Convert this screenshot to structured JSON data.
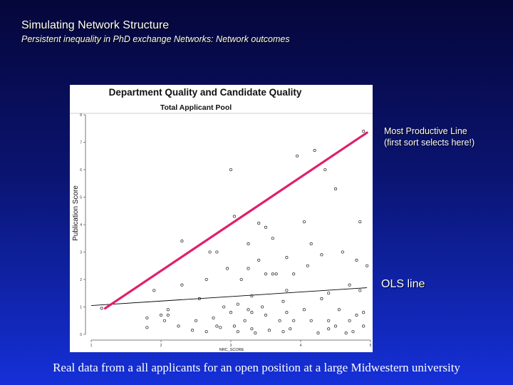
{
  "slide": {
    "title": "Simulating Network Structure",
    "subtitle": "Persistent inequality in PhD exchange Networks: Network outcomes",
    "callout_productive_line1": "Most Productive Line",
    "callout_productive_line2": "(first sort selects here!)",
    "callout_ols": "OLS line",
    "footer": "Real data from a all applicants for an open position at a large Midwestern university"
  },
  "colors": {
    "productive_line": "#e0206a",
    "ols_line": "#000000",
    "point_stroke": "#222222",
    "background_top": "#05063a",
    "background_bottom": "#1530d8"
  },
  "chart_data": {
    "type": "scatter",
    "title": "Department Quality and Candidate Quality",
    "subtitle": "Total Applicant Pool",
    "xlabel": "NRC_SCORE",
    "ylabel": "Publication Score",
    "xlim": [
      1,
      5
    ],
    "ylim": [
      0,
      8
    ],
    "xticks": [
      1,
      2,
      3,
      4,
      5
    ],
    "yticks": [
      0,
      1,
      2,
      3,
      4,
      5,
      6,
      7,
      8
    ],
    "grid": false,
    "series": [
      {
        "points": [
          [
            1.15,
            0.95
          ],
          [
            1.8,
            0.6
          ],
          [
            1.8,
            0.25
          ],
          [
            1.9,
            1.6
          ],
          [
            2.0,
            0.7
          ],
          [
            2.05,
            0.5
          ],
          [
            2.1,
            0.9
          ],
          [
            2.1,
            0.7
          ],
          [
            2.25,
            0.3
          ],
          [
            2.3,
            1.8
          ],
          [
            2.3,
            3.4
          ],
          [
            2.45,
            0.15
          ],
          [
            2.5,
            0.5
          ],
          [
            2.55,
            1.3
          ],
          [
            2.65,
            2.0
          ],
          [
            2.65,
            0.1
          ],
          [
            2.7,
            3.0
          ],
          [
            2.75,
            0.6
          ],
          [
            2.8,
            3.0
          ],
          [
            2.8,
            0.3
          ],
          [
            2.85,
            0.25
          ],
          [
            2.9,
            1.0
          ],
          [
            2.95,
            2.4
          ],
          [
            3.0,
            6.0
          ],
          [
            3.0,
            0.8
          ],
          [
            3.05,
            4.3
          ],
          [
            3.05,
            0.3
          ],
          [
            3.1,
            0.1
          ],
          [
            3.1,
            1.1
          ],
          [
            3.15,
            2.0
          ],
          [
            3.2,
            0.5
          ],
          [
            3.25,
            3.3
          ],
          [
            3.25,
            2.4
          ],
          [
            3.25,
            0.9
          ],
          [
            3.3,
            0.2
          ],
          [
            3.3,
            0.8
          ],
          [
            3.3,
            1.4
          ],
          [
            3.35,
            0.05
          ],
          [
            3.4,
            2.7
          ],
          [
            3.4,
            4.05
          ],
          [
            3.45,
            1.0
          ],
          [
            3.5,
            2.2
          ],
          [
            3.5,
            3.9
          ],
          [
            3.5,
            0.7
          ],
          [
            3.55,
            0.15
          ],
          [
            3.6,
            2.2
          ],
          [
            3.6,
            3.5
          ],
          [
            3.65,
            2.2
          ],
          [
            3.7,
            0.5
          ],
          [
            3.75,
            0.1
          ],
          [
            3.75,
            1.2
          ],
          [
            3.8,
            1.6
          ],
          [
            3.8,
            2.8
          ],
          [
            3.8,
            0.8
          ],
          [
            3.85,
            0.2
          ],
          [
            3.9,
            0.5
          ],
          [
            3.9,
            2.2
          ],
          [
            3.95,
            6.5
          ],
          [
            4.05,
            0.9
          ],
          [
            4.05,
            4.1
          ],
          [
            4.1,
            2.5
          ],
          [
            4.15,
            0.5
          ],
          [
            4.15,
            3.3
          ],
          [
            4.2,
            6.7
          ],
          [
            4.25,
            0.05
          ],
          [
            4.3,
            1.3
          ],
          [
            4.3,
            2.9
          ],
          [
            4.35,
            6.0
          ],
          [
            4.4,
            0.5
          ],
          [
            4.4,
            0.2
          ],
          [
            4.4,
            1.5
          ],
          [
            4.5,
            5.3
          ],
          [
            4.5,
            0.3
          ],
          [
            4.55,
            0.9
          ],
          [
            4.6,
            3.0
          ],
          [
            4.65,
            0.05
          ],
          [
            4.7,
            1.8
          ],
          [
            4.7,
            0.5
          ],
          [
            4.75,
            0.1
          ],
          [
            4.8,
            0.7
          ],
          [
            4.8,
            2.7
          ],
          [
            4.85,
            4.1
          ],
          [
            4.85,
            1.6
          ],
          [
            4.9,
            7.4
          ],
          [
            4.9,
            0.8
          ],
          [
            4.9,
            0.3
          ],
          [
            4.95,
            2.5
          ]
        ]
      }
    ],
    "lines": [
      {
        "label": "Most Productive Line",
        "from": [
          1.2,
          0.95
        ],
        "to": [
          4.95,
          7.35
        ]
      },
      {
        "label": "OLS line",
        "from": [
          1.0,
          1.05
        ],
        "to": [
          4.95,
          1.7
        ]
      }
    ]
  }
}
